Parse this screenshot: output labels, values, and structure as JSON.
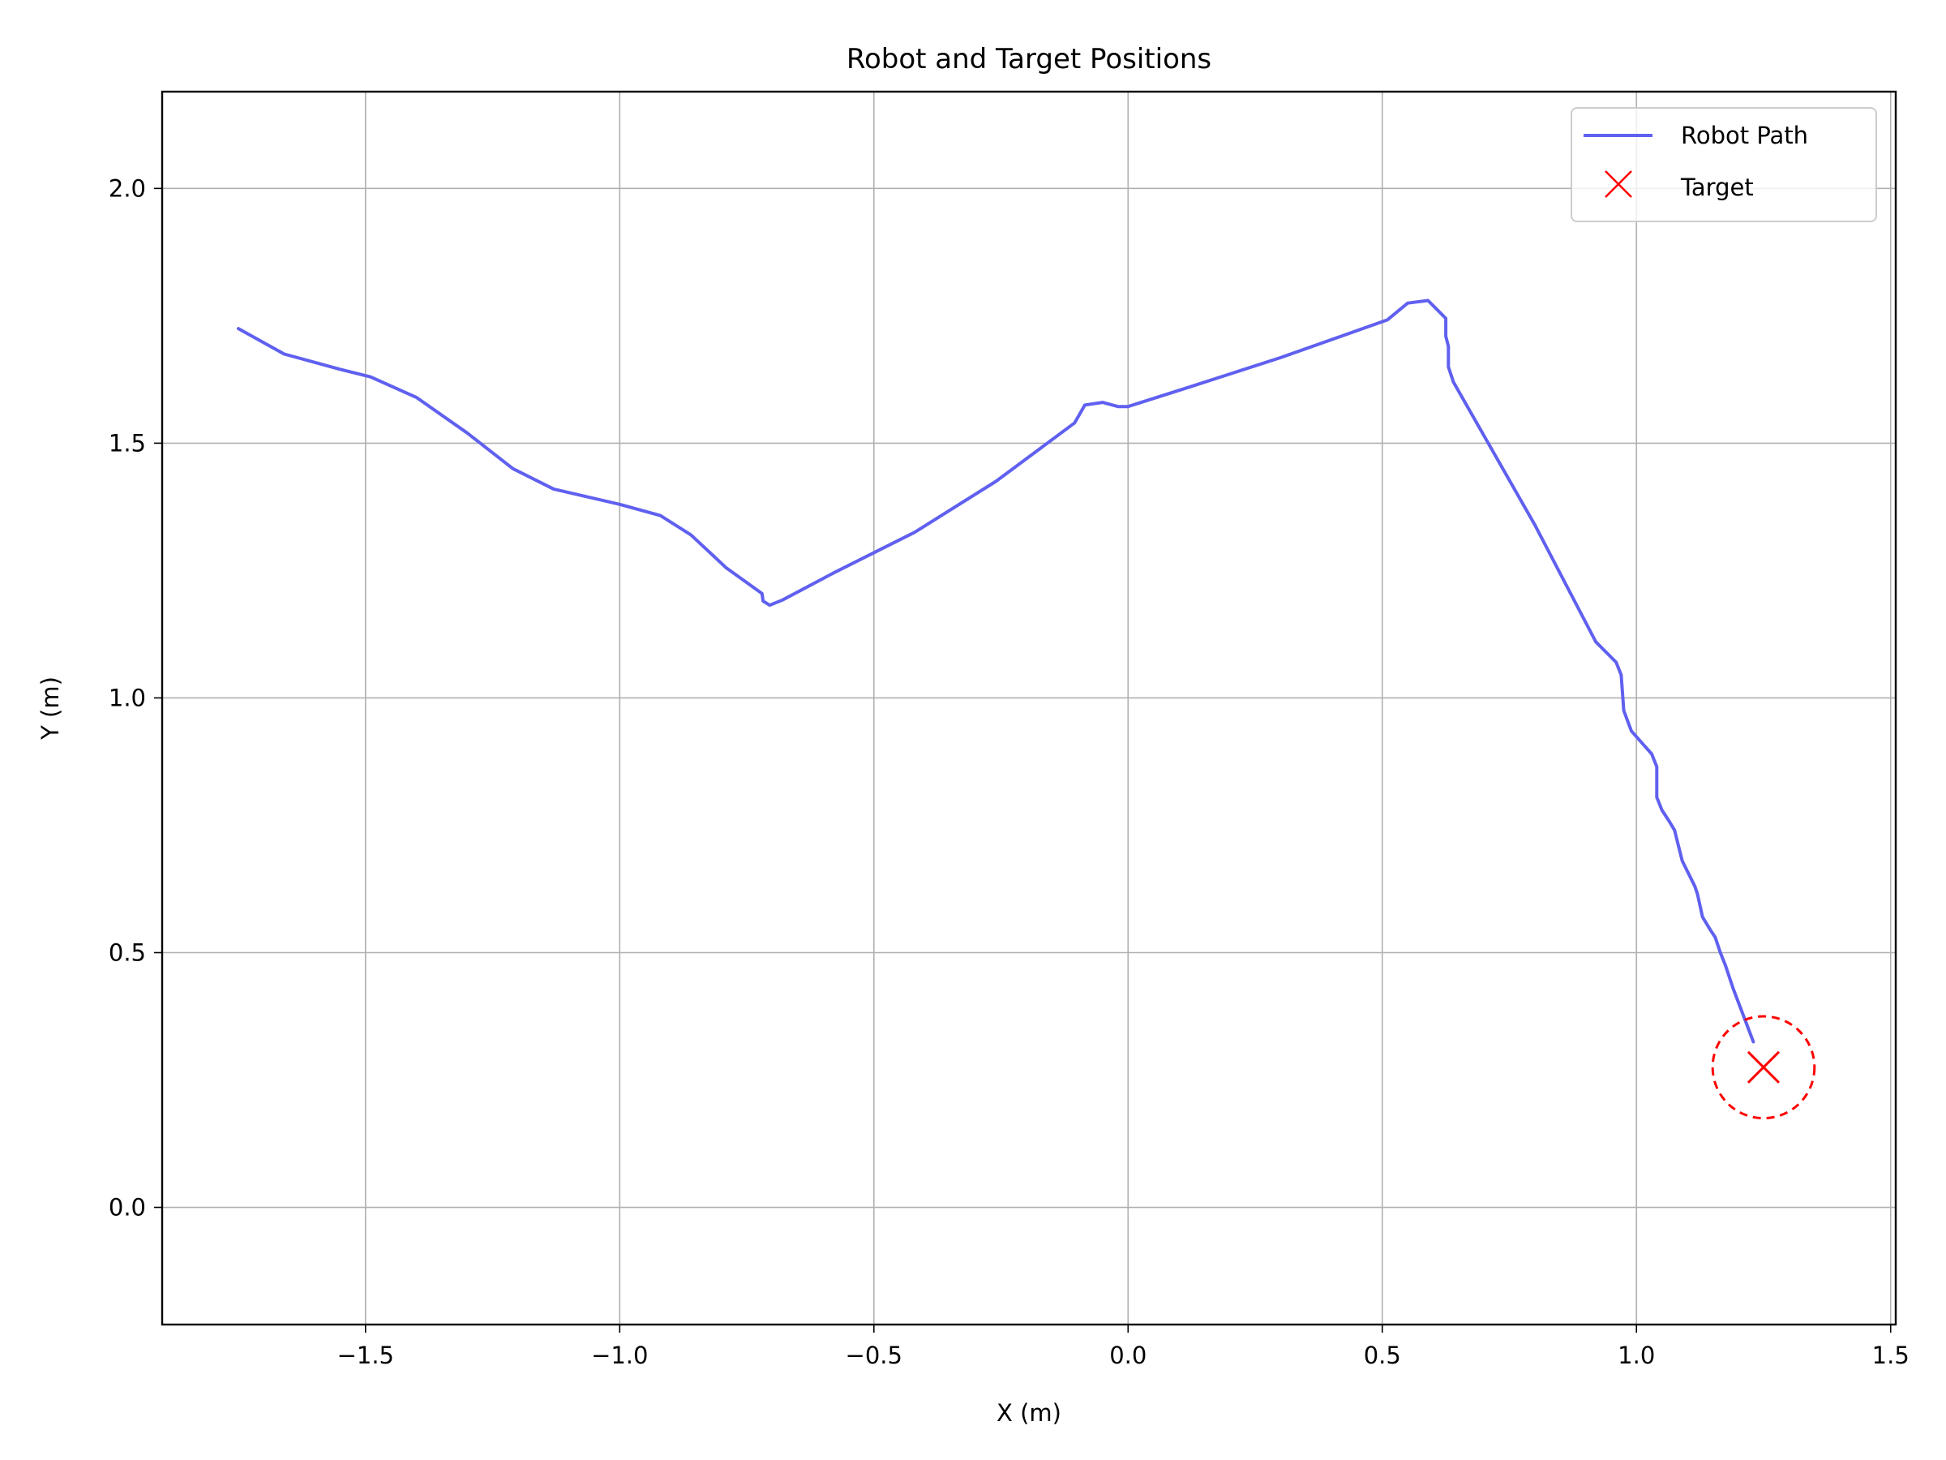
{
  "chart_data": {
    "type": "line",
    "title": "Robot and Target Positions",
    "xlabel": "X (m)",
    "ylabel": "Y (m)",
    "xlim": [
      -1.9,
      1.51
    ],
    "ylim": [
      -0.23,
      2.19
    ],
    "xticks": [
      {
        "value": -1.5,
        "label": "−1.5"
      },
      {
        "value": -1.0,
        "label": "−1.0"
      },
      {
        "value": -0.5,
        "label": "−0.5"
      },
      {
        "value": 0.0,
        "label": "0.0"
      },
      {
        "value": 0.5,
        "label": "0.5"
      },
      {
        "value": 1.0,
        "label": "1.0"
      },
      {
        "value": 1.5,
        "label": "1.5"
      }
    ],
    "yticks": [
      {
        "value": 0.0,
        "label": "0.0"
      },
      {
        "value": 0.5,
        "label": "0.5"
      },
      {
        "value": 1.0,
        "label": "1.0"
      },
      {
        "value": 1.5,
        "label": "1.5"
      },
      {
        "value": 2.0,
        "label": "2.0"
      }
    ],
    "grid": true,
    "legend": {
      "position": "top-right",
      "entries": [
        "Robot Path",
        "Target"
      ]
    },
    "series": [
      {
        "name": "Robot Path",
        "type": "line",
        "color": "#6060f0",
        "x": [
          -1.75,
          -1.66,
          -1.55,
          -1.49,
          -1.4,
          -1.3,
          -1.21,
          -1.13,
          -1.0,
          -0.92,
          -0.86,
          -0.79,
          -0.72,
          -0.718,
          -0.705,
          -0.68,
          -0.58,
          -0.42,
          -0.26,
          -0.105,
          -0.085,
          -0.05,
          -0.02,
          0.0,
          0.12,
          0.3,
          0.51,
          0.55,
          0.59,
          0.625,
          0.625,
          0.63,
          0.63,
          0.64,
          0.7,
          0.8,
          0.92,
          0.96,
          0.97,
          0.975,
          0.99,
          1.03,
          1.04,
          1.04,
          1.05,
          1.065,
          1.075,
          1.08,
          1.09,
          1.115,
          1.12,
          1.13,
          1.145,
          1.155,
          1.165,
          1.175,
          1.19,
          1.23
        ],
        "y": [
          1.725,
          1.675,
          1.645,
          1.63,
          1.59,
          1.52,
          1.45,
          1.41,
          1.38,
          1.358,
          1.32,
          1.255,
          1.205,
          1.19,
          1.182,
          1.192,
          1.245,
          1.325,
          1.425,
          1.54,
          1.575,
          1.58,
          1.572,
          1.572,
          1.61,
          1.668,
          1.742,
          1.775,
          1.78,
          1.745,
          1.71,
          1.69,
          1.65,
          1.62,
          1.515,
          1.34,
          1.11,
          1.07,
          1.045,
          0.975,
          0.935,
          0.89,
          0.865,
          0.805,
          0.78,
          0.757,
          0.74,
          0.72,
          0.68,
          0.63,
          0.615,
          0.57,
          0.545,
          0.53,
          0.5,
          0.475,
          0.43,
          0.325
        ]
      },
      {
        "name": "Target",
        "type": "scatter",
        "marker": "x",
        "color": "#ff0000",
        "x": [
          1.25
        ],
        "y": [
          0.275
        ]
      }
    ],
    "annotations": [
      {
        "type": "circle",
        "style": "dashed",
        "color": "#ff0000",
        "center": [
          1.25,
          0.275
        ],
        "radius": 0.1
      }
    ]
  }
}
